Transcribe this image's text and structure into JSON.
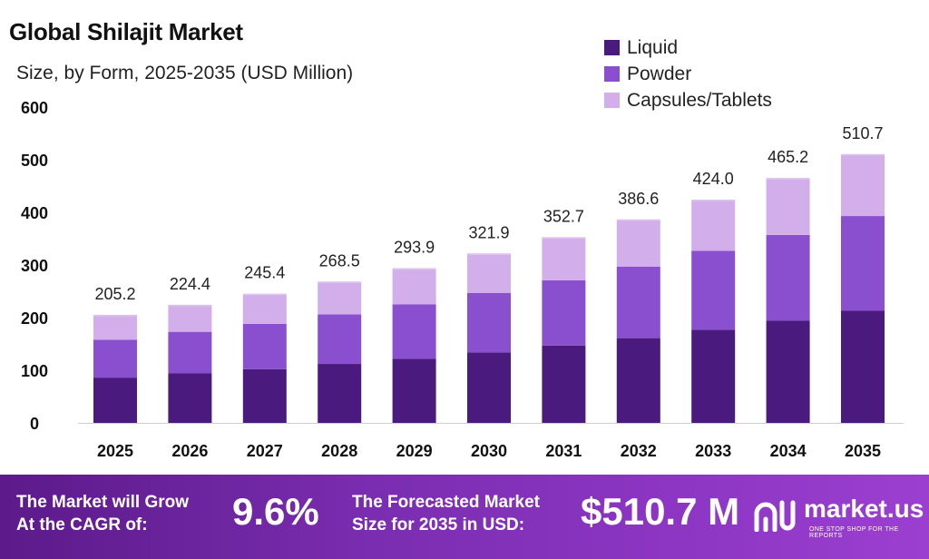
{
  "header": {
    "title": "Global Shilajit Market",
    "subtitle": "Size, by Form, 2025-2035 (USD Million)"
  },
  "chart_data": {
    "type": "bar",
    "stacked": true,
    "categories": [
      "2025",
      "2026",
      "2027",
      "2028",
      "2029",
      "2030",
      "2031",
      "2032",
      "2033",
      "2034",
      "2035"
    ],
    "series": [
      {
        "name": "Liquid",
        "color": "#4b1a7e",
        "values": [
          86,
          94,
          102,
          112,
          122,
          134,
          147,
          161,
          177,
          194,
          213
        ]
      },
      {
        "name": "Powder",
        "color": "#8a4fce",
        "values": [
          72,
          79,
          86,
          94,
          103,
          113,
          124,
          136,
          150,
          163,
          180
        ]
      },
      {
        "name": "Capsules/Tablets",
        "color": "#d2aeeb",
        "values": [
          47.2,
          51.4,
          57.4,
          62.5,
          68.9,
          74.9,
          81.7,
          89.6,
          97.0,
          108.2,
          117.7
        ]
      }
    ],
    "totals": [
      "205.2",
      "224.4",
      "245.4",
      "268.5",
      "293.9",
      "321.9",
      "352.7",
      "386.6",
      "424.0",
      "465.2",
      "510.7"
    ],
    "ylim": [
      0,
      600
    ],
    "yticks": [
      "0",
      "100",
      "200",
      "300",
      "400",
      "500",
      "600"
    ],
    "grid": false,
    "legend_position": "top-right",
    "xlabel": "",
    "ylabel": ""
  },
  "footer": {
    "cagr_line1": "The Market will Grow",
    "cagr_line2": "At the CAGR of:",
    "cagr_value": "9.6%",
    "forecast_line1": "The Forecasted Market",
    "forecast_line2": "Size for 2035 in USD:",
    "forecast_value": "$510.7 M",
    "brand_name": "market.us",
    "brand_tagline": "ONE STOP SHOP FOR THE REPORTS",
    "brand_icon": "market-us-logo-icon"
  }
}
